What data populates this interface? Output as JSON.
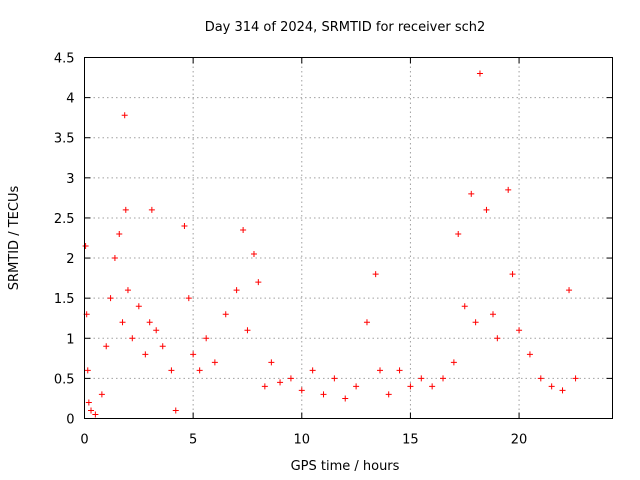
{
  "chart_data": {
    "type": "scatter",
    "title": "Day 314 of 2024, SRMTID for receiver sch2",
    "xlabel": "GPS time / hours",
    "ylabel": "SRMTID / TECUs",
    "xlim": [
      0,
      24.3
    ],
    "ylim": [
      0,
      4.5
    ],
    "xticks": [
      0,
      5,
      10,
      15,
      20
    ],
    "xtick_labels": [
      "0",
      "5",
      "10",
      "15",
      "20"
    ],
    "yticks": [
      0,
      0.5,
      1,
      1.5,
      2,
      2.5,
      3,
      3.5,
      4,
      4.5
    ],
    "ytick_labels": [
      "0",
      "0.5",
      "1",
      "1.5",
      "2",
      "2.5",
      "3",
      "3.5",
      "4",
      "4.5"
    ],
    "grid": true,
    "marker": "+",
    "series": [
      {
        "name": "SRMTID",
        "color": "#ff0000",
        "x": [
          0.05,
          0.1,
          0.15,
          0.2,
          0.3,
          0.5,
          0.8,
          1.0,
          1.2,
          1.4,
          1.6,
          1.75,
          1.85,
          1.9,
          2.0,
          2.2,
          2.5,
          2.8,
          3.0,
          3.1,
          3.3,
          3.6,
          4.0,
          4.2,
          4.6,
          4.8,
          5.0,
          5.3,
          5.6,
          6.0,
          6.5,
          7.0,
          7.3,
          7.5,
          7.8,
          8.0,
          8.3,
          8.6,
          9.0,
          9.5,
          10.0,
          10.5,
          11.0,
          11.5,
          12.0,
          12.5,
          13.0,
          13.4,
          13.6,
          14.0,
          14.5,
          15.0,
          15.5,
          16.0,
          16.5,
          17.0,
          17.2,
          17.5,
          17.8,
          18.0,
          18.2,
          18.5,
          18.8,
          19.0,
          19.5,
          19.7,
          20.0,
          20.5,
          21.0,
          21.5,
          22.0,
          22.3,
          22.6
        ],
        "y": [
          2.15,
          1.3,
          0.6,
          0.2,
          0.1,
          0.05,
          0.3,
          0.9,
          1.5,
          2.0,
          2.3,
          1.2,
          3.78,
          2.6,
          1.6,
          1.0,
          1.4,
          0.8,
          1.2,
          2.6,
          1.1,
          0.9,
          0.6,
          0.1,
          2.4,
          1.5,
          0.8,
          0.6,
          1.0,
          0.7,
          1.3,
          1.6,
          2.35,
          1.1,
          2.05,
          1.7,
          0.4,
          0.7,
          0.45,
          0.5,
          0.35,
          0.6,
          0.3,
          0.5,
          0.25,
          0.4,
          1.2,
          1.8,
          0.6,
          0.3,
          0.6,
          0.4,
          0.5,
          0.4,
          0.5,
          0.7,
          2.3,
          1.4,
          2.8,
          1.2,
          4.3,
          2.6,
          1.3,
          1.0,
          2.85,
          1.8,
          1.1,
          0.8,
          0.5,
          0.4,
          0.35,
          1.6,
          0.5
        ]
      }
    ]
  }
}
